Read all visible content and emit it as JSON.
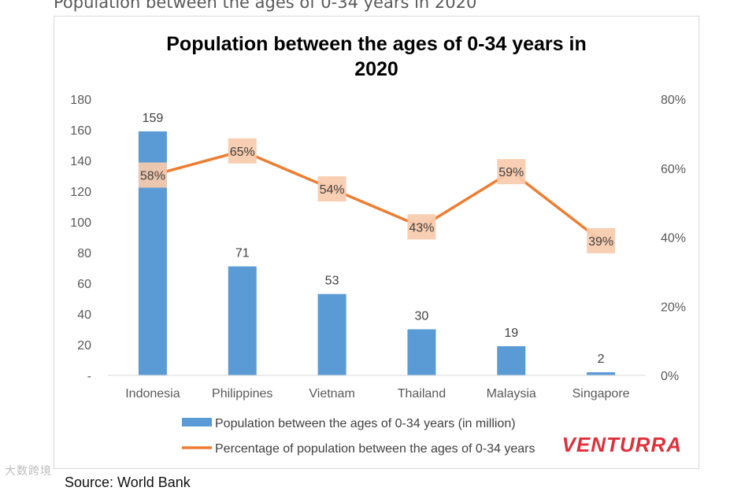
{
  "page": {
    "heading": "Population between the ages of 0-34 years in 2020",
    "source": "Source: World Bank",
    "watermark": "大数跨境"
  },
  "colors": {
    "bar": "#5b9bd5",
    "line": "#ed7d31",
    "marker_fill": "#f8cbad",
    "axis_text": "#595959",
    "title_text": "#000000"
  },
  "chart_data": {
    "type": "bar",
    "title_lines": [
      "Population between the ages of 0-34 years in",
      "2020"
    ],
    "categories": [
      "Indonesia",
      "Philippines",
      "Vietnam",
      "Thailand",
      "Malaysia",
      "Singapore"
    ],
    "series": [
      {
        "name": "Population between the ages of 0-34 years (in million)",
        "type": "bar",
        "axis": "left",
        "values": [
          159,
          71,
          53,
          30,
          19,
          2
        ],
        "labels": [
          "159",
          "71",
          "53",
          "30",
          "19",
          "2"
        ]
      },
      {
        "name": "Percentage of population between the ages of 0-34 years",
        "type": "line",
        "axis": "right",
        "values": [
          58,
          65,
          54,
          43,
          59,
          39
        ],
        "labels": [
          "58%",
          "65%",
          "54%",
          "43%",
          "59%",
          "39%"
        ]
      }
    ],
    "y_left": {
      "ylim": [
        0,
        180
      ],
      "ticks": [
        0,
        20,
        40,
        60,
        80,
        100,
        120,
        140,
        160,
        180
      ],
      "tick_labels": [
        "-",
        "20",
        "40",
        "60",
        "80",
        "100",
        "120",
        "140",
        "160",
        "180"
      ]
    },
    "y_right": {
      "ylim": [
        0,
        80
      ],
      "ticks": [
        0,
        20,
        40,
        60,
        80
      ],
      "tick_labels": [
        "0%",
        "20%",
        "40%",
        "60%",
        "80%"
      ]
    },
    "legend_position": "bottom",
    "brand": "VENTURRA"
  }
}
